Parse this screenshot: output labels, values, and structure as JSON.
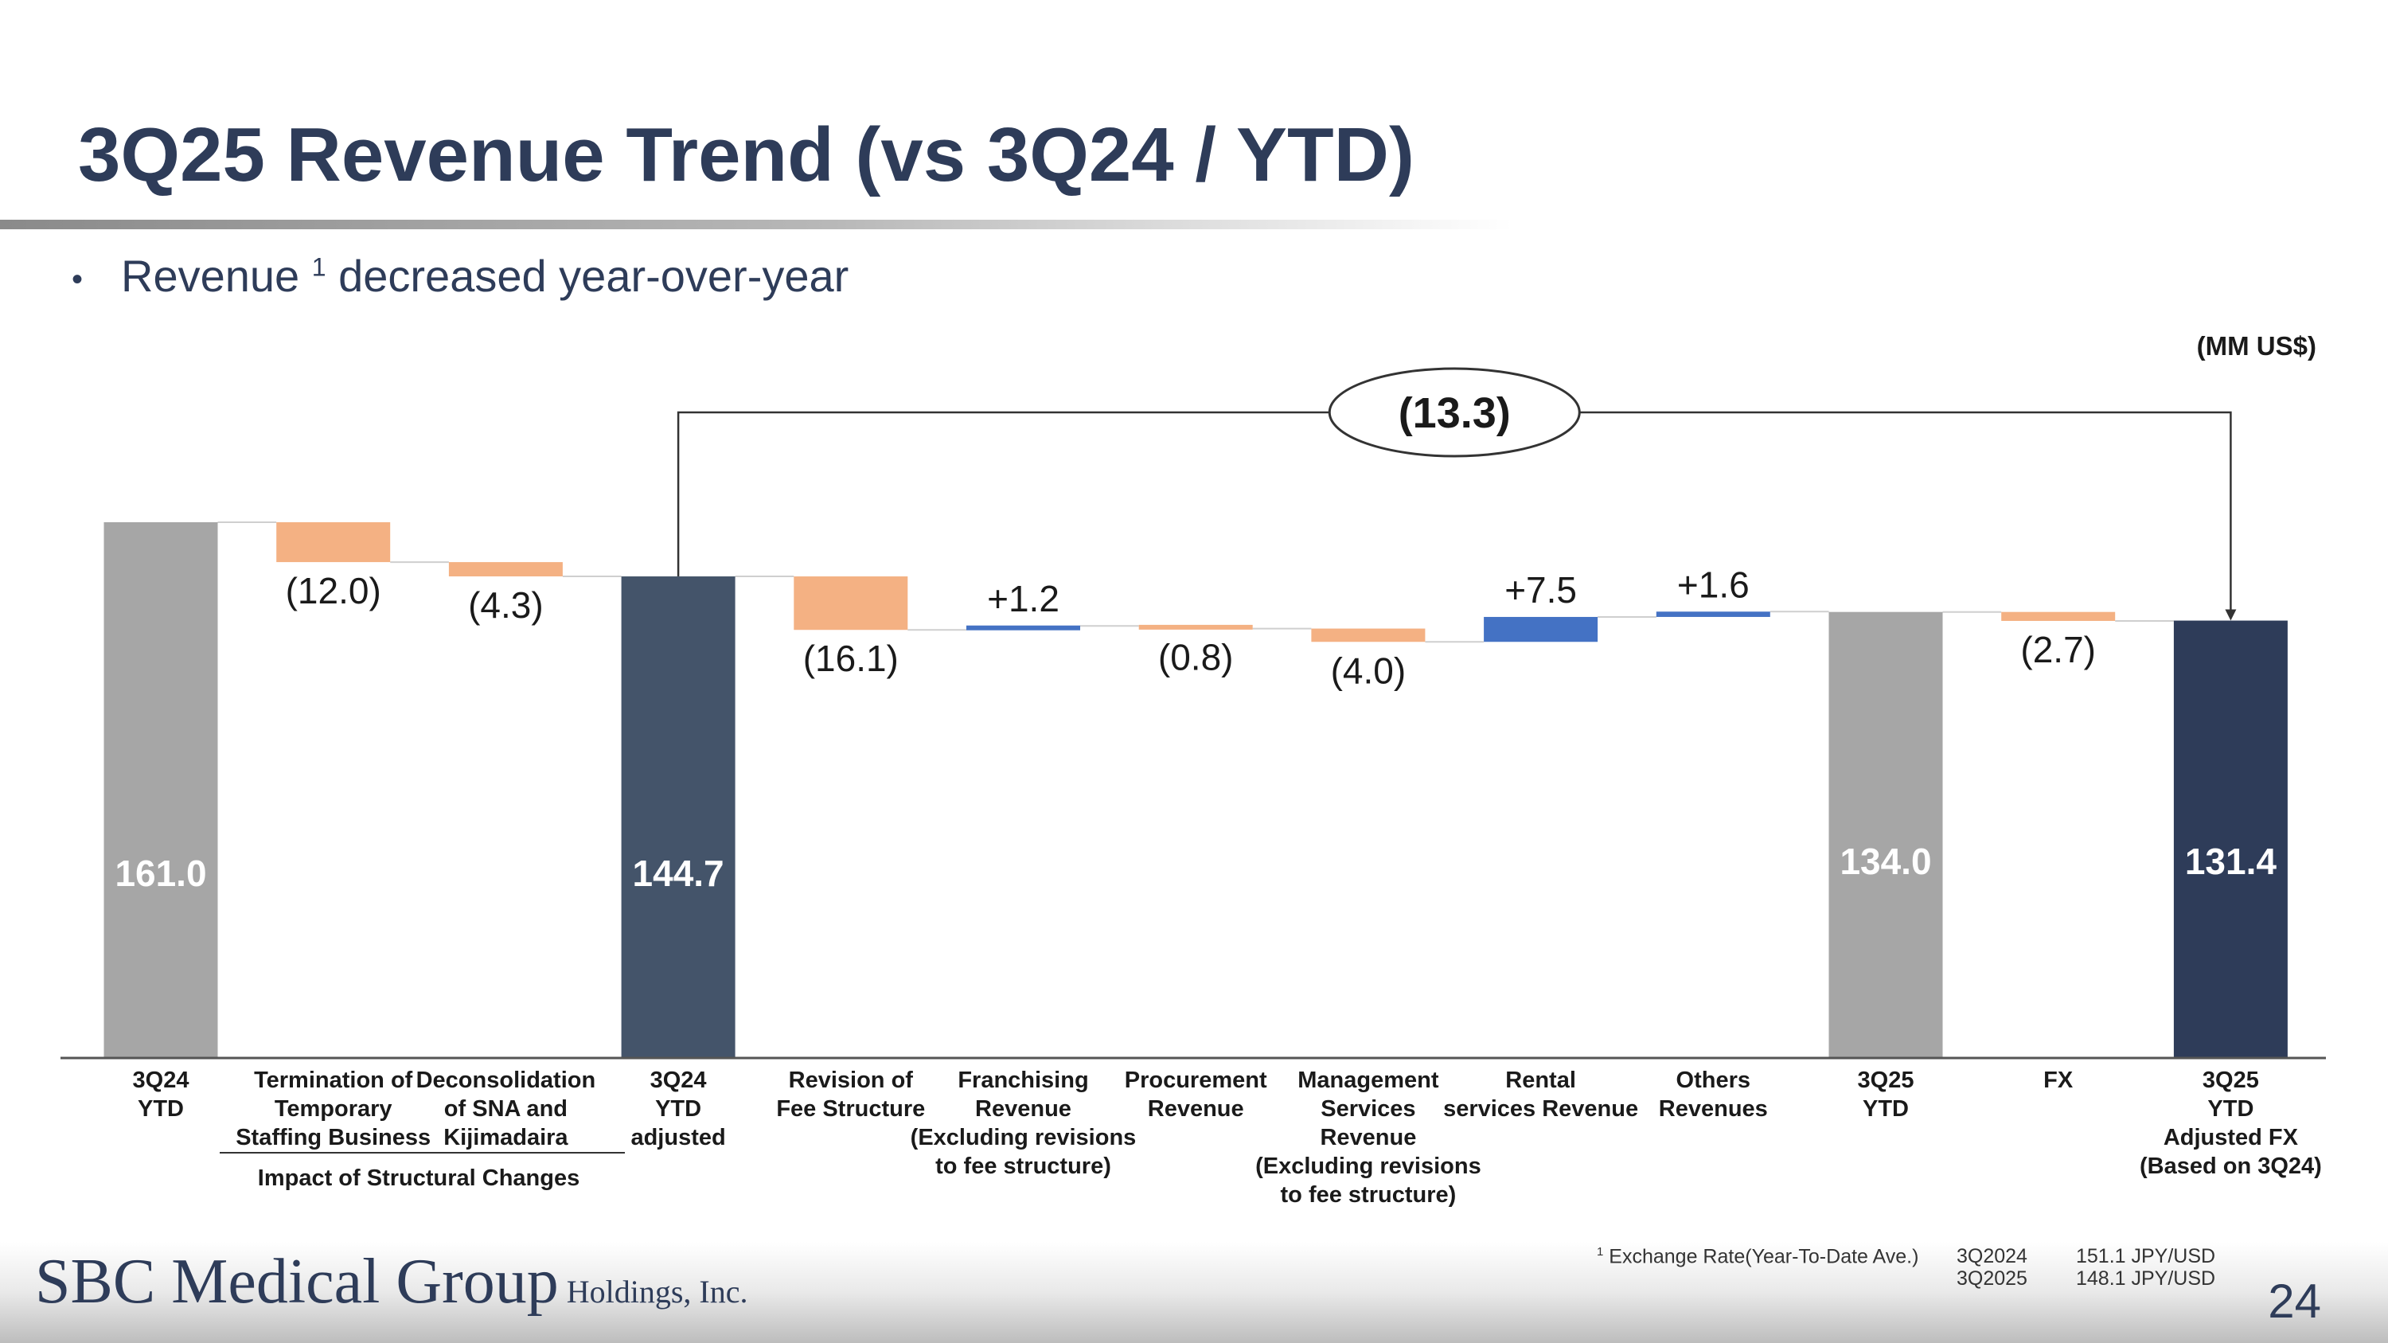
{
  "slide": {
    "title": "3Q25 Revenue Trend (vs 3Q24 / YTD)",
    "bullet": {
      "marker": "•",
      "pre": "Revenue ",
      "sup": "1",
      "post": " decreased year-over-year"
    },
    "unit": "(MM US$)",
    "page_number": "24",
    "logo": {
      "main": "SBC Medical Group",
      "sub": "Holdings, Inc."
    },
    "footnote": {
      "marker": "1",
      "label": "Exchange Rate(Year-To-Date Ave.)",
      "rows": [
        {
          "period": "3Q2024",
          "rate": "151.1 JPY/USD"
        },
        {
          "period": "3Q2025",
          "rate": "148.1 JPY/USD"
        }
      ]
    }
  },
  "chart_data": {
    "type": "bar",
    "subtype": "waterfall",
    "ylim": [
      0,
      161.0
    ],
    "colors": {
      "total_gray": "#a6a6a6",
      "total_dark": "#44546a",
      "total_navy": "#2e3c59",
      "decrease": "#f4b183",
      "increase": "#4472c4",
      "connector": "#cfcfcf",
      "axis": "#555555"
    },
    "categories": [
      {
        "label": [
          "3Q24",
          "YTD"
        ],
        "kind": "total",
        "value": 161.0,
        "display": "161.0",
        "color": "total_gray"
      },
      {
        "label": [
          "Termination of",
          "Temporary",
          "Staffing Business"
        ],
        "kind": "delta",
        "value": -12.0,
        "display": "(12.0)"
      },
      {
        "label": [
          "Deconsolidation",
          "of SNA and",
          "Kijimadaira"
        ],
        "kind": "delta",
        "value": -4.3,
        "display": "(4.3)"
      },
      {
        "label": [
          "3Q24",
          "YTD",
          "adjusted"
        ],
        "kind": "total",
        "value": 144.7,
        "display": "144.7",
        "color": "total_dark"
      },
      {
        "label": [
          "Revision of",
          "Fee Structure"
        ],
        "kind": "delta",
        "value": -16.1,
        "display": "(16.1)"
      },
      {
        "label": [
          "Franchising",
          "Revenue",
          "(Excluding revisions",
          "to fee structure)"
        ],
        "kind": "delta",
        "value": 1.2,
        "display": "+1.2"
      },
      {
        "label": [
          "Procurement",
          "Revenue"
        ],
        "kind": "delta",
        "value": -0.8,
        "display": "(0.8)"
      },
      {
        "label": [
          "Management",
          "Services",
          "Revenue",
          "(Excluding revisions",
          "to fee structure)"
        ],
        "kind": "delta",
        "value": -4.0,
        "display": "(4.0)"
      },
      {
        "label": [
          "Rental",
          "services Revenue"
        ],
        "kind": "delta",
        "value": 7.5,
        "display": "+7.5"
      },
      {
        "label": [
          "Others",
          "Revenues"
        ],
        "kind": "delta",
        "value": 1.6,
        "display": "+1.6"
      },
      {
        "label": [
          "3Q25",
          "YTD"
        ],
        "kind": "total",
        "value": 134.0,
        "display": "134.0",
        "color": "total_gray"
      },
      {
        "label": [
          "FX"
        ],
        "kind": "delta",
        "value": -2.7,
        "display": "(2.7)"
      },
      {
        "label": [
          "3Q25",
          "YTD",
          "Adjusted FX",
          "(Based on 3Q24)"
        ],
        "kind": "total",
        "value": 131.4,
        "display": "131.4",
        "color": "total_navy"
      }
    ],
    "group_label": {
      "text": "Impact of Structural Changes",
      "from": 1,
      "to": 2
    },
    "bracket": {
      "from": 3,
      "to": 12,
      "text": "(13.3)"
    }
  }
}
